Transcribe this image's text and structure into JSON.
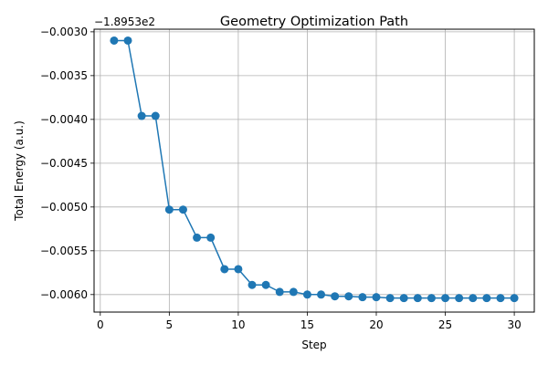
{
  "chart_data": {
    "type": "line",
    "title": "Geometry Optimization Path",
    "xlabel": "Step",
    "ylabel": "Total Energy (a.u.)",
    "offset_label": "−1.8953e2",
    "offset_value": -189.53,
    "xlim": [
      -0.45,
      31.45
    ],
    "ylim": [
      -0.0062,
      -0.00297
    ],
    "x_ticks": [
      0,
      5,
      10,
      15,
      20,
      25,
      30
    ],
    "y_ticks": [
      -0.003,
      -0.0035,
      -0.004,
      -0.0045,
      -0.005,
      -0.0055,
      -0.006
    ],
    "x_tick_labels": [
      "0",
      "5",
      "10",
      "15",
      "20",
      "25",
      "30"
    ],
    "y_tick_labels": [
      "−0.0030",
      "−0.0035",
      "−0.0040",
      "−0.0045",
      "−0.0050",
      "−0.0055",
      "−0.0060"
    ],
    "grid": true,
    "color": "#1f77b4",
    "series": [
      {
        "name": "",
        "x": [
          1,
          2,
          3,
          4,
          5,
          6,
          7,
          8,
          9,
          10,
          11,
          12,
          13,
          14,
          15,
          16,
          17,
          18,
          19,
          20,
          21,
          22,
          23,
          24,
          25,
          26,
          27,
          28,
          29,
          30
        ],
        "y": [
          -0.0031,
          -0.0031,
          -0.00396,
          -0.00396,
          -0.00503,
          -0.00503,
          -0.00535,
          -0.00535,
          -0.00571,
          -0.00571,
          -0.00589,
          -0.00589,
          -0.00597,
          -0.00597,
          -0.006,
          -0.006,
          -0.00602,
          -0.00602,
          -0.00603,
          -0.00603,
          -0.00604,
          -0.00604,
          -0.00604,
          -0.00604,
          -0.00604,
          -0.00604,
          -0.00604,
          -0.00604,
          -0.00604,
          -0.00604
        ]
      }
    ]
  }
}
